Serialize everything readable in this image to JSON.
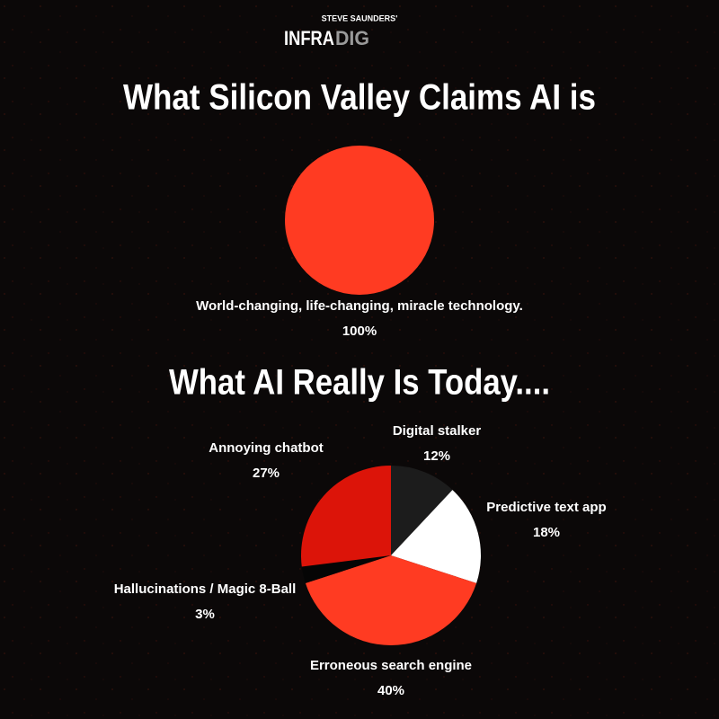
{
  "header": {
    "byline": "STEVE SAUNDERS'",
    "brand_main": "INFRA",
    "brand_accent": "DIG"
  },
  "chart_data": [
    {
      "type": "pie",
      "title": "What Silicon Valley Claims AI is",
      "categories": [
        "World-changing, life-changing, miracle technology."
      ],
      "values": [
        100
      ],
      "value_labels": [
        "100%"
      ],
      "colors": [
        "#ff3b22"
      ]
    },
    {
      "type": "pie",
      "title": "What AI Really Is Today....",
      "categories": [
        "Digital stalker",
        "Predictive text app",
        "Erroneous search engine",
        "Hallucinations / Magic 8-Ball",
        "Annoying chatbot"
      ],
      "values": [
        12,
        18,
        40,
        3,
        27
      ],
      "value_labels": [
        "12%",
        "18%",
        "40%",
        "3%",
        "27%"
      ],
      "colors": [
        "#1c1c1c",
        "#ffffff",
        "#ff3b22",
        "#050505",
        "#dc1409"
      ]
    }
  ]
}
